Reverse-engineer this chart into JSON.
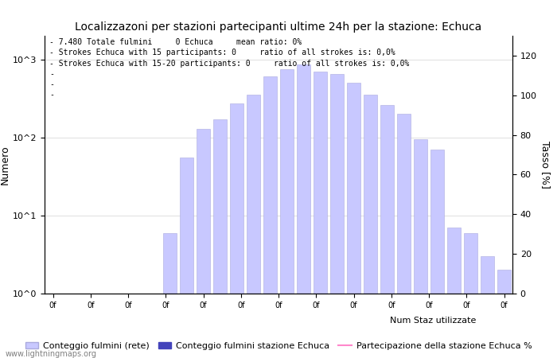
{
  "title": "Localizzazoni per stazioni partecipanti ultime 24h per la stazione: Echuca",
  "ylabel_left": "Numero",
  "ylabel_right": "Tasso [%]",
  "annotation_lines": [
    "- 7.480 Totale fulmini     0 Echuca     mean ratio: 0%",
    "- Strokes Echuca with 15 participants: 0     ratio of all strokes is: 0,0%",
    "- Strokes Echuca with 15-20 participants: 0     ratio of all strokes is: 0,0%",
    "-",
    "-",
    "-"
  ],
  "bar_values": [
    1,
    1,
    1,
    1,
    1,
    1,
    1,
    6,
    55,
    130,
    170,
    270,
    350,
    600,
    750,
    850,
    700,
    650,
    500,
    350,
    260,
    200,
    95,
    70,
    7,
    6,
    3,
    2
  ],
  "bar_color_light": "#c8c8ff",
  "bar_color_dark": "#4444bb",
  "bar_edgecolor": "#aaaadd",
  "line_color": "#ff88cc",
  "right_ticks": [
    0,
    20,
    40,
    60,
    80,
    100,
    120
  ],
  "watermark": "www.lightningmaps.org",
  "tick_label": "0f",
  "n_xticks": 13,
  "title_fontsize": 10,
  "annotation_fontsize": 7,
  "legend_fontsize": 8
}
